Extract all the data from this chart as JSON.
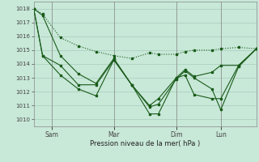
{
  "bg_color": "#c8e8d8",
  "grid_color": "#a8ccbc",
  "line_color": "#1a5c1a",
  "xlabel": "Pression niveau de la mer( hPa )",
  "ylim": [
    1009.5,
    1018.5
  ],
  "yticks": [
    1010,
    1011,
    1012,
    1013,
    1014,
    1015,
    1016,
    1017,
    1018
  ],
  "day_labels": [
    "Sam",
    "Mar",
    "Dim",
    "Lun"
  ],
  "day_positions": [
    0.08,
    0.36,
    0.64,
    0.84
  ],
  "xlim": [
    0,
    1.0
  ],
  "s1_x": [
    0.0,
    0.04,
    0.12,
    0.2,
    0.28,
    0.36,
    0.44,
    0.52,
    0.56,
    0.64,
    0.68,
    0.72,
    0.8,
    0.84,
    0.92,
    1.0
  ],
  "s1_y": [
    1018.0,
    1017.6,
    1015.9,
    1015.3,
    1014.9,
    1014.6,
    1014.4,
    1014.8,
    1014.7,
    1014.7,
    1014.9,
    1015.0,
    1015.0,
    1015.1,
    1015.2,
    1015.1
  ],
  "s2_x": [
    0.0,
    0.04,
    0.12,
    0.2,
    0.28,
    0.36,
    0.44,
    0.52,
    0.56,
    0.64,
    0.68,
    0.72,
    0.8,
    0.84,
    0.92,
    1.0
  ],
  "s2_y": [
    1018.0,
    1017.5,
    1014.6,
    1013.3,
    1012.6,
    1014.4,
    1012.5,
    1011.0,
    1011.5,
    1013.0,
    1013.6,
    1013.1,
    1013.4,
    1013.9,
    1013.9,
    1015.1
  ],
  "s3_x": [
    0.0,
    0.04,
    0.12,
    0.2,
    0.28,
    0.36,
    0.44,
    0.52,
    0.56,
    0.64,
    0.68,
    0.72,
    0.8,
    0.84,
    0.92,
    1.0
  ],
  "s3_y": [
    1018.0,
    1014.6,
    1013.2,
    1012.2,
    1011.7,
    1014.3,
    1012.5,
    1010.9,
    1011.1,
    1012.9,
    1013.5,
    1013.0,
    1012.2,
    1010.7,
    1013.8,
    1015.1
  ],
  "s4_x": [
    0.0,
    0.04,
    0.12,
    0.2,
    0.28,
    0.36,
    0.44,
    0.52,
    0.56,
    0.64,
    0.68,
    0.72,
    0.8,
    0.84,
    0.92,
    1.0
  ],
  "s4_y": [
    1018.0,
    1014.6,
    1013.9,
    1012.5,
    1012.5,
    1014.3,
    1012.5,
    1010.4,
    1010.4,
    1013.0,
    1013.2,
    1011.8,
    1011.5,
    1011.5,
    1013.9,
    1015.1
  ]
}
